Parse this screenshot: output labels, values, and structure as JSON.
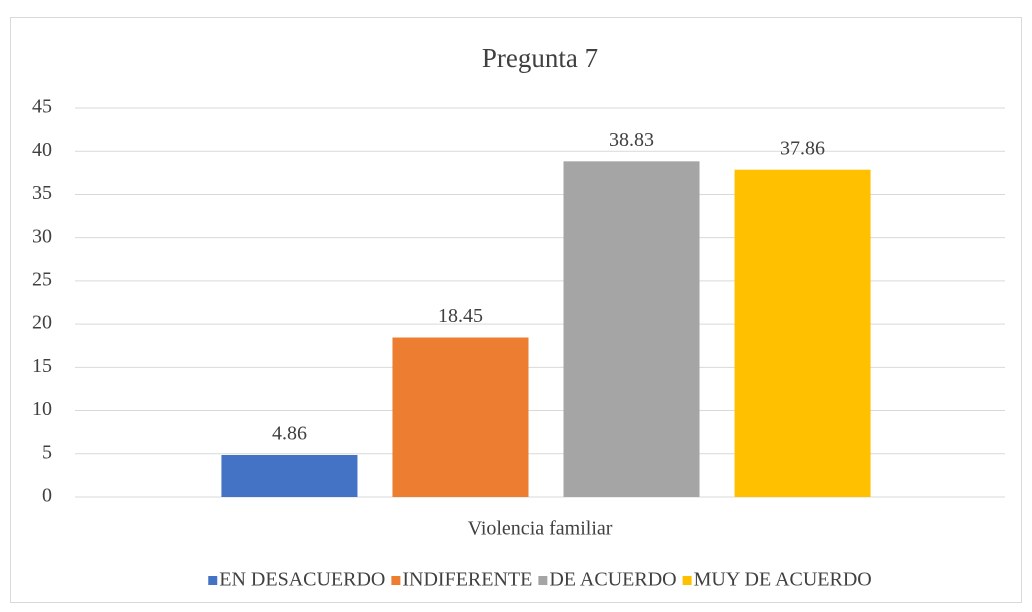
{
  "chart_data": {
    "type": "bar",
    "title": "Pregunta 7",
    "categories": [
      "Violencia familiar"
    ],
    "series": [
      {
        "name": "EN DESACUERDO",
        "color": "#4472c4",
        "values": [
          4.86
        ]
      },
      {
        "name": "INDIFERENTE",
        "color": "#ed7d31",
        "values": [
          18.45
        ]
      },
      {
        "name": "DE ACUERDO",
        "color": "#a5a5a5",
        "values": [
          38.83
        ]
      },
      {
        "name": "MUY DE ACUERDO",
        "color": "#ffc000",
        "values": [
          37.86
        ]
      }
    ],
    "ylim": [
      0,
      45
    ],
    "yticks": [
      0,
      5,
      10,
      15,
      20,
      25,
      30,
      35,
      40,
      45
    ],
    "grid": true,
    "legend": "bottom"
  }
}
